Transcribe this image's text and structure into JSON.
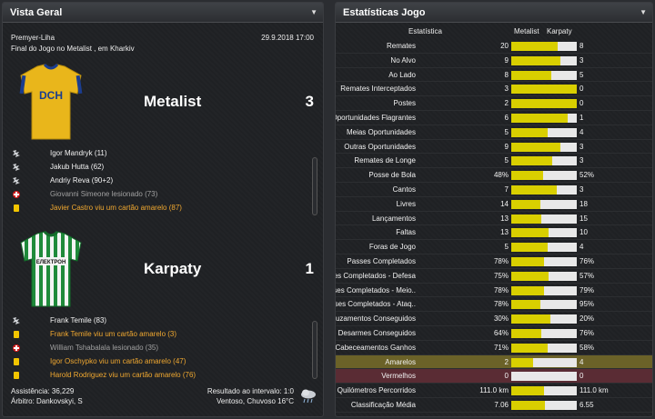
{
  "left_panel": {
    "title": "Vista Geral",
    "competition": "Premyer-Liha",
    "datetime": "29.9.2018 17:00",
    "venue_line": "Final do Jogo no Metalist , em Kharkiv",
    "home": {
      "name": "Metalist",
      "score": "3",
      "shirt_text": "DCH",
      "events": [
        {
          "icon": "goal-icon",
          "text": "Igor Mandryk (11)",
          "style": "white"
        },
        {
          "icon": "goal-icon",
          "text": "Jakub Hutta (62)",
          "style": "white"
        },
        {
          "icon": "goal-icon",
          "text": "Andriy Reva (90+2)",
          "style": "white"
        },
        {
          "icon": "injury-icon",
          "text": "Giovanni Simeone lesionado (73)",
          "style": "grey"
        },
        {
          "icon": "yellow-card-icon",
          "text": "Javier Castro viu um cartão amarelo (87)",
          "style": "orange"
        }
      ]
    },
    "away": {
      "name": "Karpaty",
      "score": "1",
      "shirt_text": "ЕЛЕКТРОН",
      "events": [
        {
          "icon": "goal-icon",
          "text": "Frank Temile (83)",
          "style": "white"
        },
        {
          "icon": "yellow-card-icon",
          "text": "Frank Temile viu um cartão amarelo (3)",
          "style": "orange"
        },
        {
          "icon": "injury-icon",
          "text": "William Tshabalala lesionado (35)",
          "style": "grey"
        },
        {
          "icon": "yellow-card-icon",
          "text": "Igor Oschypko viu um cartão amarelo (47)",
          "style": "orange"
        },
        {
          "icon": "yellow-card-icon",
          "text": "Harold Rodriguez viu um cartão amarelo (76)",
          "style": "orange"
        }
      ]
    },
    "footer": {
      "attendance": "Assistência: 36,229",
      "referee": "Árbitro: Dankovskyi, S",
      "halftime": "Resultado ao intervalo: 1:0",
      "weather": "Ventoso, Chuvoso 16°C"
    }
  },
  "right_panel": {
    "title": "Estatísticas Jogo",
    "col_stat": "Estatística",
    "col_home": "Metalist",
    "col_away": "Karpaty",
    "rows": [
      {
        "label": "Remates",
        "home": "20",
        "away": "8",
        "ratio": 0.714
      },
      {
        "label": "No Alvo",
        "home": "9",
        "away": "3",
        "ratio": 0.75
      },
      {
        "label": "Ao Lado",
        "home": "8",
        "away": "5",
        "ratio": 0.615
      },
      {
        "label": "Remates Interceptados",
        "home": "3",
        "away": "0",
        "ratio": 1.0
      },
      {
        "label": "Postes",
        "home": "2",
        "away": "0",
        "ratio": 1.0
      },
      {
        "label": "Oportunidades Flagrantes",
        "home": "6",
        "away": "1",
        "ratio": 0.857
      },
      {
        "label": "Meias Oportunidades",
        "home": "5",
        "away": "4",
        "ratio": 0.556
      },
      {
        "label": "Outras Oportunidades",
        "home": "9",
        "away": "3",
        "ratio": 0.75
      },
      {
        "label": "Remates de Longe",
        "home": "5",
        "away": "3",
        "ratio": 0.625
      },
      {
        "label": "Posse de Bola",
        "home": "48%",
        "away": "52%",
        "ratio": 0.48
      },
      {
        "label": "Cantos",
        "home": "7",
        "away": "3",
        "ratio": 0.7
      },
      {
        "label": "Livres",
        "home": "14",
        "away": "18",
        "ratio": 0.4375
      },
      {
        "label": "Lançamentos",
        "home": "13",
        "away": "15",
        "ratio": 0.464
      },
      {
        "label": "Faltas",
        "home": "13",
        "away": "10",
        "ratio": 0.565
      },
      {
        "label": "Foras de Jogo",
        "home": "5",
        "away": "4",
        "ratio": 0.556
      },
      {
        "label": "Passes Completados",
        "home": "78%",
        "away": "76%",
        "ratio": 0.506
      },
      {
        "label": "Passes Completados - Defesa",
        "home": "75%",
        "away": "57%",
        "ratio": 0.568
      },
      {
        "label": "Passes Completados - Meio..",
        "home": "78%",
        "away": "79%",
        "ratio": 0.497
      },
      {
        "label": "Passes Completados - Ataq..",
        "home": "78%",
        "away": "95%",
        "ratio": 0.451
      },
      {
        "label": "Cruzamentos Conseguidos",
        "home": "30%",
        "away": "20%",
        "ratio": 0.6
      },
      {
        "label": "Desarmes Conseguidos",
        "home": "64%",
        "away": "76%",
        "ratio": 0.457
      },
      {
        "label": "Cabeceamentos Ganhos",
        "home": "71%",
        "away": "58%",
        "ratio": 0.55
      },
      {
        "label": "Amarelos",
        "home": "2",
        "away": "4",
        "ratio": 0.333,
        "highlight": "yellow"
      },
      {
        "label": "Vermelhos",
        "home": "0",
        "away": "0",
        "ratio": 0.0,
        "highlight": "red"
      },
      {
        "label": "Quilómetros Percorridos",
        "home": "111.0 km",
        "away": "111.0 km",
        "ratio": 0.5
      },
      {
        "label": "Classificação Média",
        "home": "7.06",
        "away": "6.55",
        "ratio": 0.519
      }
    ]
  },
  "colors": {
    "bar_fill": "#d9cf00",
    "bar_bg": "#e8e8e8",
    "yellow_highlight": "#6b6228",
    "red_highlight": "#5a2c34",
    "event_orange": "#f0a830"
  }
}
